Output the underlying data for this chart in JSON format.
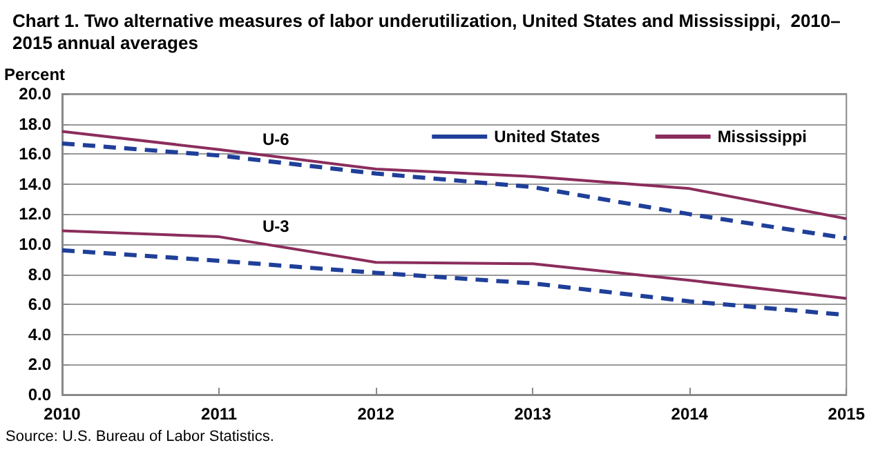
{
  "chart_data": {
    "type": "line",
    "title": "Chart 1. Two alternative measures of labor underutilization, United States and Mississippi,  2010–\n2015 annual averages",
    "ylabel": "Percent",
    "categories": [
      "2010",
      "2011",
      "2012",
      "2013",
      "2014",
      "2015"
    ],
    "series": [
      {
        "name": "United States",
        "color": "#1f3f99",
        "line_style": "dashed",
        "values": [
          16.7,
          15.9,
          14.7,
          13.8,
          12.0,
          10.4
        ]
      },
      {
        "name": "Mississippi",
        "color": "#8b2d5c",
        "line_style": "solid",
        "values": [
          17.5,
          16.3,
          15.0,
          14.5,
          13.7,
          11.7
        ]
      },
      {
        "color": "#1f3f99",
        "line_style": "dashed",
        "values": [
          9.6,
          8.9,
          8.1,
          7.4,
          6.2,
          5.3
        ]
      },
      {
        "color": "#8b2d5c",
        "line_style": "solid",
        "values": [
          10.9,
          10.5,
          8.8,
          8.7,
          7.6,
          6.4
        ]
      }
    ],
    "ylim": [
      0,
      20
    ],
    "yticks": [
      {
        "value": 0,
        "label": "0.0"
      },
      {
        "value": 2,
        "label": "2.0"
      },
      {
        "value": 4,
        "label": "4.0"
      },
      {
        "value": 6,
        "label": "6.0"
      },
      {
        "value": 8,
        "label": "8.0"
      },
      {
        "value": 10,
        "label": "10.0"
      },
      {
        "value": 12,
        "label": "12.0"
      },
      {
        "value": 14,
        "label": "14.0"
      },
      {
        "value": 16,
        "label": "16.0"
      },
      {
        "value": 18,
        "label": "18.0"
      },
      {
        "value": 20,
        "label": "20.0"
      }
    ],
    "grid": "y",
    "legend": "top right",
    "marker": "none",
    "annotations": [
      "U-6",
      "U-3",
      "Source: U.S. Bureau of Labor Statistics."
    ]
  }
}
